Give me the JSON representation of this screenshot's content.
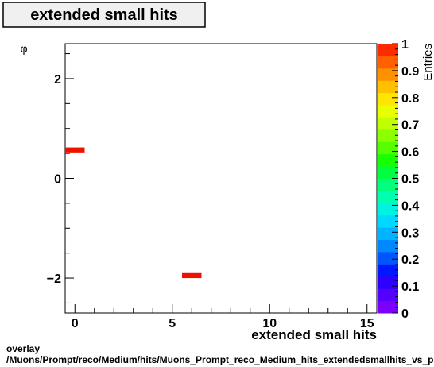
{
  "chart_data": {
    "type": "heatmap",
    "title": "extended small hits",
    "xlabel": "extended small hits",
    "ylabel": "φ",
    "zlabel": "Entries",
    "xlim": [
      -0.5,
      15.5
    ],
    "ylim": [
      -2.7,
      2.7
    ],
    "zlim": [
      0,
      1
    ],
    "x_ticks": [
      0,
      5,
      10,
      15
    ],
    "x_tick_labels": [
      "0",
      "5",
      "10",
      "15"
    ],
    "y_ticks": [
      -2,
      0,
      2
    ],
    "y_tick_labels": [
      "−2",
      "0",
      "2"
    ],
    "z_ticks": [
      0,
      0.1,
      0.2,
      0.3,
      0.4,
      0.5,
      0.6,
      0.7,
      0.8,
      0.9,
      1
    ],
    "z_tick_labels": [
      "0",
      "0.1",
      "0.2",
      "0.3",
      "0.4",
      "0.5",
      "0.6",
      "0.7",
      "0.8",
      "0.9",
      "1"
    ],
    "cells": [
      {
        "x": [
          -0.5,
          0.5
        ],
        "y": [
          0.52,
          0.62
        ],
        "z": 1
      },
      {
        "x": [
          5.5,
          6.5
        ],
        "y": [
          -2.0,
          -1.9
        ],
        "z": 1
      }
    ],
    "palette": [
      "#7b00ff",
      "#5400ff",
      "#2d00ff",
      "#0018ff",
      "#0055ff",
      "#0088ff",
      "#00b4ff",
      "#00d8ff",
      "#00f2e0",
      "#00ffb0",
      "#00ff7a",
      "#00ff40",
      "#18ff00",
      "#55ff00",
      "#8cff00",
      "#c0ff00",
      "#e8ff00",
      "#ffe600",
      "#ffc000",
      "#ff9000",
      "#ff6000",
      "#ff2a00"
    ],
    "cell_color": "#ee1100",
    "grid": false
  },
  "footer": {
    "line1": "overlay",
    "line2": "/Muons/Prompt/reco/Medium/hits/Muons_Prompt_reco_Medium_hits_extendedsmallhits_vs_phi"
  }
}
